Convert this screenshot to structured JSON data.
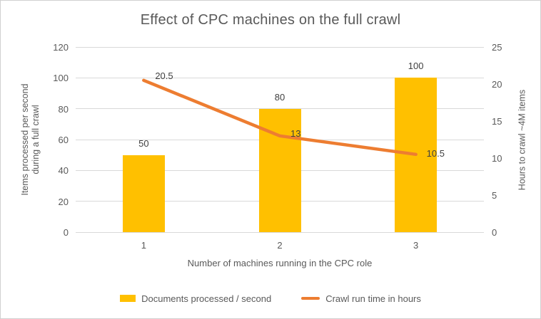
{
  "colors": {
    "bar": "#FFC000",
    "line": "#ED7D31",
    "grid": "#D9D9D9",
    "text": "#595959",
    "label": "#404040",
    "border": "#D0D0D0"
  },
  "chart_data": {
    "type": "combo (bar + line)",
    "title": "Effect of CPC machines on the full crawl",
    "categories": [
      "1",
      "2",
      "3"
    ],
    "xlabel": "Number of machines running in the CPC role",
    "left_axis": {
      "label_lines": [
        "Items processed per second",
        "during a full crawl"
      ],
      "min": 0,
      "max": 120,
      "ticks": [
        0,
        20,
        40,
        60,
        80,
        100,
        120
      ]
    },
    "right_axis": {
      "label": "Hours to crawl ~4M items",
      "min": 0,
      "max": 25,
      "ticks": [
        0,
        5,
        10,
        15,
        20,
        25
      ]
    },
    "grid": "horizontal",
    "legend_position": "bottom",
    "series": [
      {
        "name": "Documents processed / second",
        "type": "bar",
        "axis": "left",
        "color": "#FFC000",
        "values": [
          50,
          80,
          100
        ],
        "data_labels": [
          "50",
          "80",
          "100"
        ]
      },
      {
        "name": "Crawl run time in hours",
        "type": "line",
        "axis": "right",
        "color": "#ED7D31",
        "values": [
          20.5,
          13,
          10.5
        ],
        "data_labels": [
          "20.5",
          "13",
          "10.5"
        ]
      }
    ]
  }
}
